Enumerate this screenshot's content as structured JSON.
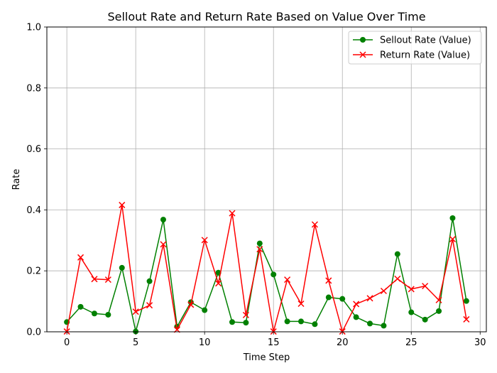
{
  "chart_data": {
    "type": "line",
    "title": "Sellout Rate and Return Rate Based on Value Over Time",
    "xlabel": "Time Step",
    "ylabel": "Rate",
    "xlim": [
      -1.45,
      30.45
    ],
    "ylim": [
      0,
      1.0
    ],
    "xticks": [
      0,
      5,
      10,
      15,
      20,
      25,
      30
    ],
    "yticks": [
      0.0,
      0.2,
      0.4,
      0.6,
      0.8,
      1.0
    ],
    "xtick_labels": [
      "0",
      "5",
      "10",
      "15",
      "20",
      "25",
      "30"
    ],
    "ytick_labels": [
      "0.0",
      "0.2",
      "0.4",
      "0.6",
      "0.8",
      "1.0"
    ],
    "grid": true,
    "legend_position": "upper right",
    "x": [
      0,
      1,
      2,
      3,
      4,
      5,
      6,
      7,
      8,
      9,
      10,
      11,
      12,
      13,
      14,
      15,
      16,
      17,
      18,
      19,
      20,
      21,
      22,
      23,
      24,
      25,
      26,
      27,
      28,
      29
    ],
    "series": [
      {
        "name": "Sellout Rate (Value)",
        "color": "#008000",
        "marker": "circle",
        "values": [
          0.032,
          0.082,
          0.06,
          0.056,
          0.21,
          0.001,
          0.166,
          0.368,
          0.017,
          0.097,
          0.071,
          0.194,
          0.032,
          0.03,
          0.29,
          0.188,
          0.034,
          0.034,
          0.025,
          0.113,
          0.108,
          0.048,
          0.027,
          0.02,
          0.255,
          0.064,
          0.04,
          0.068,
          0.373,
          0.101
        ]
      },
      {
        "name": "Return Rate (Value)",
        "color": "#ff0000",
        "marker": "x",
        "values": [
          0.001,
          0.244,
          0.173,
          0.171,
          0.416,
          0.066,
          0.087,
          0.287,
          0.007,
          0.089,
          0.301,
          0.159,
          0.389,
          0.055,
          0.271,
          0.001,
          0.171,
          0.092,
          0.352,
          0.168,
          0.001,
          0.091,
          0.11,
          0.134,
          0.174,
          0.14,
          0.15,
          0.104,
          0.304,
          0.041
        ]
      }
    ]
  }
}
